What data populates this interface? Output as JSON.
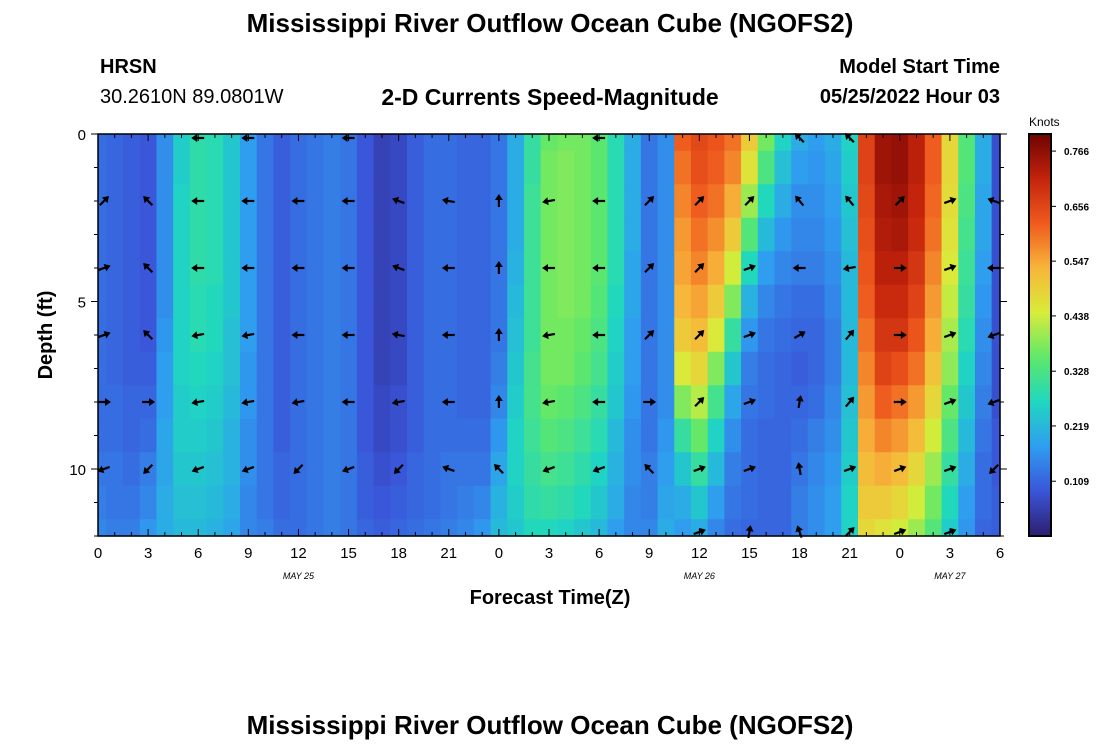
{
  "header": {
    "title": "Mississippi River Outflow Ocean Cube (NGOFS2)",
    "station": "HRSN",
    "coords": "30.2610N  89.0801W",
    "subtitle": "2-D Currents Speed-Magnitude",
    "model_start_label": "Model Start Time",
    "model_start_value": "05/25/2022 Hour 03"
  },
  "footer": {
    "title": "Mississippi River Outflow Ocean Cube (NGOFS2)"
  },
  "chart_data": {
    "type": "heatmap",
    "title": "2-D Currents Speed-Magnitude",
    "xlabel": "Forecast Time(Z)",
    "ylabel": "Depth (ft)",
    "x_tick_labels": [
      "0",
      "3",
      "6",
      "9",
      "12",
      "15",
      "18",
      "21",
      "0",
      "3",
      "6",
      "9",
      "12",
      "15",
      "18",
      "21",
      "0",
      "3",
      "6"
    ],
    "x_hours": [
      0,
      3,
      6,
      9,
      12,
      15,
      18,
      21,
      24,
      27,
      30,
      33,
      36,
      39,
      42,
      45,
      48,
      51,
      54
    ],
    "date_labels": [
      {
        "text": "MAY 25",
        "hour": 12
      },
      {
        "text": "MAY 26",
        "hour": 36
      },
      {
        "text": "MAY 27",
        "hour": 51
      }
    ],
    "y_tick_labels": [
      "0",
      "5",
      "10"
    ],
    "y_ticks": [
      0,
      5,
      10
    ],
    "ylim": [
      0,
      12
    ],
    "xlim": [
      0,
      54
    ],
    "colorbar": {
      "unit": "Knots",
      "ticks": [
        "0.766",
        "0.656",
        "0.547",
        "0.438",
        "0.328",
        "0.219",
        "0.109"
      ],
      "tick_values": [
        0.766,
        0.656,
        0.547,
        0.438,
        0.328,
        0.219,
        0.109
      ],
      "range": [
        0,
        0.8
      ],
      "colors": [
        "#2d1e6e",
        "#3a55d9",
        "#2f9df0",
        "#1fd7c0",
        "#5fe86a",
        "#d8ec3a",
        "#f8b53a",
        "#ef5a1e",
        "#c4230c",
        "#6e0303"
      ]
    },
    "profiles": [
      {
        "hour": 0,
        "speeds": [
          0.12,
          0.12,
          0.12,
          0.12,
          0.12,
          0.12,
          0.12,
          0.12,
          0.12,
          0.12,
          0.13,
          0.14,
          0.15
        ]
      },
      {
        "hour": 1,
        "speeds": [
          0.11,
          0.11,
          0.11,
          0.11,
          0.11,
          0.11,
          0.11,
          0.11,
          0.12,
          0.12,
          0.13,
          0.13,
          0.14
        ]
      },
      {
        "hour": 2,
        "speeds": [
          0.1,
          0.1,
          0.1,
          0.1,
          0.1,
          0.1,
          0.1,
          0.1,
          0.11,
          0.11,
          0.12,
          0.13,
          0.14
        ]
      },
      {
        "hour": 3,
        "speeds": [
          0.09,
          0.09,
          0.09,
          0.09,
          0.09,
          0.09,
          0.09,
          0.1,
          0.11,
          0.12,
          0.14,
          0.15,
          0.17
        ]
      },
      {
        "hour": 4,
        "speeds": [
          0.16,
          0.16,
          0.16,
          0.16,
          0.16,
          0.16,
          0.17,
          0.18,
          0.18,
          0.19,
          0.19,
          0.2,
          0.2
        ]
      },
      {
        "hour": 5,
        "speeds": [
          0.25,
          0.25,
          0.26,
          0.26,
          0.26,
          0.26,
          0.26,
          0.26,
          0.25,
          0.25,
          0.24,
          0.23,
          0.22
        ]
      },
      {
        "hour": 6,
        "speeds": [
          0.29,
          0.29,
          0.29,
          0.29,
          0.29,
          0.28,
          0.28,
          0.27,
          0.26,
          0.25,
          0.24,
          0.23,
          0.22
        ]
      },
      {
        "hour": 7,
        "speeds": [
          0.28,
          0.28,
          0.28,
          0.28,
          0.28,
          0.27,
          0.27,
          0.26,
          0.25,
          0.24,
          0.23,
          0.22,
          0.21
        ]
      },
      {
        "hour": 8,
        "speeds": [
          0.24,
          0.24,
          0.24,
          0.24,
          0.24,
          0.24,
          0.23,
          0.23,
          0.22,
          0.21,
          0.21,
          0.2,
          0.19
        ]
      },
      {
        "hour": 9,
        "speeds": [
          0.18,
          0.18,
          0.18,
          0.18,
          0.18,
          0.18,
          0.18,
          0.17,
          0.17,
          0.16,
          0.16,
          0.15,
          0.15
        ]
      },
      {
        "hour": 10,
        "speeds": [
          0.13,
          0.13,
          0.13,
          0.13,
          0.13,
          0.13,
          0.13,
          0.13,
          0.13,
          0.13,
          0.13,
          0.13,
          0.14
        ]
      },
      {
        "hour": 11,
        "speeds": [
          0.1,
          0.1,
          0.1,
          0.1,
          0.1,
          0.1,
          0.1,
          0.1,
          0.1,
          0.1,
          0.11,
          0.11,
          0.12
        ]
      },
      {
        "hour": 12,
        "speeds": [
          0.12,
          0.12,
          0.12,
          0.12,
          0.12,
          0.12,
          0.12,
          0.12,
          0.12,
          0.12,
          0.12,
          0.12,
          0.12
        ]
      },
      {
        "hour": 13,
        "speeds": [
          0.13,
          0.13,
          0.13,
          0.13,
          0.13,
          0.13,
          0.13,
          0.13,
          0.13,
          0.13,
          0.13,
          0.13,
          0.13
        ]
      },
      {
        "hour": 14,
        "speeds": [
          0.14,
          0.14,
          0.14,
          0.14,
          0.14,
          0.14,
          0.14,
          0.14,
          0.14,
          0.14,
          0.14,
          0.14,
          0.14
        ]
      },
      {
        "hour": 15,
        "speeds": [
          0.13,
          0.13,
          0.13,
          0.13,
          0.13,
          0.13,
          0.13,
          0.13,
          0.13,
          0.13,
          0.13,
          0.13,
          0.13
        ]
      },
      {
        "hour": 16,
        "speeds": [
          0.09,
          0.09,
          0.09,
          0.09,
          0.09,
          0.09,
          0.09,
          0.09,
          0.09,
          0.09,
          0.1,
          0.1,
          0.11
        ]
      },
      {
        "hour": 17,
        "speeds": [
          0.06,
          0.06,
          0.06,
          0.06,
          0.06,
          0.06,
          0.06,
          0.06,
          0.07,
          0.07,
          0.08,
          0.09,
          0.1
        ]
      },
      {
        "hour": 18,
        "speeds": [
          0.07,
          0.07,
          0.07,
          0.07,
          0.07,
          0.07,
          0.07,
          0.07,
          0.08,
          0.08,
          0.09,
          0.1,
          0.11
        ]
      },
      {
        "hour": 19,
        "speeds": [
          0.1,
          0.1,
          0.1,
          0.1,
          0.1,
          0.1,
          0.1,
          0.1,
          0.1,
          0.1,
          0.11,
          0.11,
          0.12
        ]
      },
      {
        "hour": 20,
        "speeds": [
          0.12,
          0.12,
          0.12,
          0.12,
          0.12,
          0.12,
          0.12,
          0.12,
          0.12,
          0.12,
          0.12,
          0.12,
          0.13
        ]
      },
      {
        "hour": 21,
        "speeds": [
          0.12,
          0.12,
          0.12,
          0.12,
          0.12,
          0.12,
          0.12,
          0.12,
          0.12,
          0.12,
          0.13,
          0.13,
          0.14
        ]
      },
      {
        "hour": 22,
        "speeds": [
          0.11,
          0.11,
          0.11,
          0.11,
          0.11,
          0.11,
          0.11,
          0.11,
          0.11,
          0.12,
          0.13,
          0.14,
          0.15
        ]
      },
      {
        "hour": 23,
        "speeds": [
          0.11,
          0.11,
          0.11,
          0.11,
          0.11,
          0.11,
          0.11,
          0.11,
          0.11,
          0.12,
          0.13,
          0.15,
          0.17
        ]
      },
      {
        "hour": 24,
        "speeds": [
          0.13,
          0.13,
          0.13,
          0.13,
          0.13,
          0.13,
          0.13,
          0.14,
          0.15,
          0.17,
          0.19,
          0.21,
          0.22
        ]
      },
      {
        "hour": 25,
        "speeds": [
          0.2,
          0.2,
          0.2,
          0.2,
          0.21,
          0.22,
          0.23,
          0.24,
          0.25,
          0.26,
          0.26,
          0.25,
          0.24
        ]
      },
      {
        "hour": 26,
        "speeds": [
          0.3,
          0.3,
          0.31,
          0.31,
          0.31,
          0.31,
          0.31,
          0.32,
          0.32,
          0.31,
          0.3,
          0.29,
          0.27
        ]
      },
      {
        "hour": 27,
        "speeds": [
          0.36,
          0.37,
          0.37,
          0.37,
          0.37,
          0.37,
          0.37,
          0.37,
          0.36,
          0.34,
          0.32,
          0.3,
          0.27
        ]
      },
      {
        "hour": 28,
        "speeds": [
          0.37,
          0.38,
          0.38,
          0.38,
          0.38,
          0.38,
          0.37,
          0.37,
          0.35,
          0.33,
          0.31,
          0.29,
          0.26
        ]
      },
      {
        "hour": 29,
        "speeds": [
          0.37,
          0.37,
          0.37,
          0.37,
          0.37,
          0.37,
          0.36,
          0.35,
          0.33,
          0.31,
          0.29,
          0.27,
          0.24
        ]
      },
      {
        "hour": 30,
        "speeds": [
          0.35,
          0.35,
          0.35,
          0.35,
          0.35,
          0.34,
          0.33,
          0.32,
          0.3,
          0.28,
          0.26,
          0.24,
          0.22
        ]
      },
      {
        "hour": 31,
        "speeds": [
          0.28,
          0.28,
          0.28,
          0.28,
          0.28,
          0.27,
          0.26,
          0.25,
          0.24,
          0.22,
          0.21,
          0.2,
          0.18
        ]
      },
      {
        "hour": 32,
        "speeds": [
          0.2,
          0.2,
          0.2,
          0.2,
          0.19,
          0.19,
          0.18,
          0.18,
          0.17,
          0.16,
          0.16,
          0.15,
          0.15
        ]
      },
      {
        "hour": 33,
        "speeds": [
          0.13,
          0.13,
          0.13,
          0.13,
          0.13,
          0.13,
          0.13,
          0.13,
          0.13,
          0.13,
          0.14,
          0.14,
          0.15
        ]
      },
      {
        "hour": 34,
        "speeds": [
          0.16,
          0.16,
          0.16,
          0.16,
          0.16,
          0.16,
          0.16,
          0.16,
          0.16,
          0.17,
          0.18,
          0.19,
          0.2
        ]
      },
      {
        "hour": 35,
        "speeds": [
          0.62,
          0.6,
          0.58,
          0.56,
          0.55,
          0.53,
          0.5,
          0.45,
          0.38,
          0.3,
          0.24,
          0.2,
          0.18
        ]
      },
      {
        "hour": 36,
        "speeds": [
          0.65,
          0.64,
          0.62,
          0.6,
          0.58,
          0.55,
          0.52,
          0.48,
          0.42,
          0.36,
          0.3,
          0.24,
          0.2
        ]
      },
      {
        "hour": 37,
        "speeds": [
          0.63,
          0.62,
          0.6,
          0.57,
          0.54,
          0.5,
          0.45,
          0.38,
          0.32,
          0.26,
          0.22,
          0.18,
          0.15
        ]
      },
      {
        "hour": 38,
        "speeds": [
          0.6,
          0.58,
          0.54,
          0.5,
          0.44,
          0.38,
          0.3,
          0.24,
          0.19,
          0.16,
          0.14,
          0.13,
          0.12
        ]
      },
      {
        "hour": 39,
        "speeds": [
          0.5,
          0.46,
          0.4,
          0.34,
          0.27,
          0.21,
          0.17,
          0.14,
          0.13,
          0.12,
          0.12,
          0.12,
          0.11
        ]
      },
      {
        "hour": 40,
        "speeds": [
          0.37,
          0.33,
          0.27,
          0.22,
          0.18,
          0.15,
          0.13,
          0.12,
          0.12,
          0.11,
          0.11,
          0.11,
          0.11
        ]
      },
      {
        "hour": 41,
        "speeds": [
          0.26,
          0.23,
          0.2,
          0.17,
          0.15,
          0.13,
          0.12,
          0.11,
          0.11,
          0.11,
          0.11,
          0.11,
          0.11
        ]
      },
      {
        "hour": 42,
        "speeds": [
          0.2,
          0.18,
          0.16,
          0.15,
          0.14,
          0.12,
          0.11,
          0.1,
          0.11,
          0.12,
          0.13,
          0.14,
          0.14
        ]
      },
      {
        "hour": 43,
        "speeds": [
          0.18,
          0.17,
          0.16,
          0.15,
          0.14,
          0.12,
          0.11,
          0.11,
          0.12,
          0.14,
          0.15,
          0.16,
          0.16
        ]
      },
      {
        "hour": 44,
        "speeds": [
          0.2,
          0.19,
          0.18,
          0.17,
          0.16,
          0.15,
          0.14,
          0.14,
          0.15,
          0.16,
          0.17,
          0.18,
          0.18
        ]
      },
      {
        "hour": 45,
        "speeds": [
          0.26,
          0.25,
          0.24,
          0.23,
          0.22,
          0.22,
          0.22,
          0.22,
          0.23,
          0.24,
          0.25,
          0.26,
          0.26
        ]
      },
      {
        "hour": 46,
        "speeds": [
          0.66,
          0.66,
          0.65,
          0.64,
          0.63,
          0.62,
          0.6,
          0.58,
          0.56,
          0.54,
          0.52,
          0.5,
          0.48
        ]
      },
      {
        "hour": 47,
        "speeds": [
          0.75,
          0.75,
          0.74,
          0.73,
          0.72,
          0.7,
          0.68,
          0.66,
          0.62,
          0.58,
          0.54,
          0.5,
          0.46
        ]
      },
      {
        "hour": 48,
        "speeds": [
          0.76,
          0.76,
          0.75,
          0.74,
          0.72,
          0.7,
          0.68,
          0.64,
          0.6,
          0.56,
          0.52,
          0.48,
          0.44
        ]
      },
      {
        "hour": 49,
        "speeds": [
          0.72,
          0.72,
          0.71,
          0.7,
          0.68,
          0.66,
          0.63,
          0.6,
          0.56,
          0.52,
          0.48,
          0.44,
          0.4
        ]
      },
      {
        "hour": 50,
        "speeds": [
          0.62,
          0.62,
          0.61,
          0.6,
          0.58,
          0.56,
          0.54,
          0.51,
          0.48,
          0.44,
          0.4,
          0.37,
          0.34
        ]
      },
      {
        "hour": 51,
        "speeds": [
          0.48,
          0.48,
          0.47,
          0.46,
          0.45,
          0.43,
          0.41,
          0.39,
          0.36,
          0.33,
          0.3,
          0.27,
          0.25
        ]
      },
      {
        "hour": 52,
        "speeds": [
          0.34,
          0.34,
          0.33,
          0.32,
          0.31,
          0.3,
          0.28,
          0.26,
          0.24,
          0.22,
          0.2,
          0.18,
          0.17
        ]
      },
      {
        "hour": 53,
        "speeds": [
          0.2,
          0.2,
          0.19,
          0.19,
          0.18,
          0.17,
          0.16,
          0.15,
          0.14,
          0.13,
          0.12,
          0.12,
          0.11
        ]
      },
      {
        "hour": 54,
        "speeds": [
          0.08,
          0.08,
          0.08,
          0.08,
          0.08,
          0.08,
          0.08,
          0.08,
          0.08,
          0.09,
          0.09,
          0.1,
          0.1
        ]
      }
    ],
    "profile_depths": [
      0,
      1,
      2,
      3,
      4,
      5,
      6,
      7,
      8,
      9,
      10,
      11,
      12
    ],
    "arrows": {
      "hours": [
        0,
        3,
        6,
        9,
        12,
        15,
        18,
        21,
        24,
        27,
        30,
        33,
        36,
        39,
        42,
        45,
        48,
        51,
        54
      ],
      "depths": [
        0,
        2,
        4,
        6,
        8,
        10,
        12
      ],
      "directions_deg": [
        [
          null,
          null,
          180,
          180,
          null,
          180,
          null,
          null,
          null,
          null,
          180,
          null,
          null,
          null,
          135,
          135,
          null,
          null,
          null
        ],
        [
          45,
          135,
          180,
          180,
          180,
          180,
          160,
          170,
          90,
          190,
          180,
          45,
          45,
          45,
          130,
          130,
          45,
          20,
          160
        ],
        [
          20,
          135,
          180,
          180,
          180,
          180,
          160,
          180,
          90,
          180,
          180,
          45,
          45,
          20,
          180,
          190,
          0,
          20,
          180
        ],
        [
          20,
          135,
          190,
          190,
          180,
          180,
          170,
          180,
          90,
          190,
          180,
          45,
          45,
          20,
          30,
          50,
          0,
          20,
          200
        ],
        [
          0,
          0,
          190,
          190,
          190,
          180,
          190,
          180,
          90,
          190,
          180,
          0,
          45,
          20,
          80,
          50,
          0,
          20,
          200
        ],
        [
          200,
          225,
          200,
          200,
          225,
          200,
          225,
          160,
          135,
          200,
          200,
          135,
          20,
          20,
          100,
          20,
          20,
          20,
          225
        ],
        [
          null,
          null,
          null,
          null,
          null,
          null,
          null,
          null,
          null,
          null,
          null,
          null,
          20,
          80,
          110,
          45,
          20,
          20,
          null
        ]
      ]
    }
  }
}
